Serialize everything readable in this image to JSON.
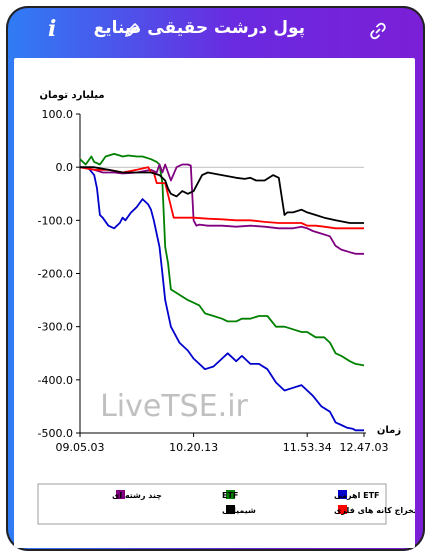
{
  "header": {
    "title": "پول درشت حقیقی صنایع",
    "info_icon": "i"
  },
  "watermark": "LiveTSE.ir",
  "chart_data": {
    "type": "line",
    "ylabel": "میلیارد تومان",
    "xlabel": "زمان",
    "ylim": [
      -500,
      100
    ],
    "yticks": [
      "100.0",
      "0.0",
      "-100.0",
      "-200.0",
      "-300.0",
      "-400.0",
      "-500.0"
    ],
    "xticks": [
      "09.05.03",
      "10.20.13",
      "11.53.34",
      "12.47.03"
    ],
    "grid": false,
    "legend_position": "bottom",
    "series": [
      {
        "name": "ETF اهرمی",
        "color": "#0000cc",
        "x": [
          0,
          3,
          5,
          6,
          7,
          8,
          10,
          12,
          14,
          15,
          16,
          18,
          19,
          20,
          22,
          24,
          25,
          26,
          28,
          29,
          30,
          32,
          35,
          38,
          40,
          42,
          44,
          47,
          50,
          52,
          55,
          57,
          60,
          63,
          66,
          69,
          72,
          75,
          78,
          82,
          85,
          88,
          90,
          92,
          94,
          96,
          97,
          99,
          100
        ],
        "y": [
          0,
          -2,
          -15,
          -40,
          -90,
          -95,
          -110,
          -115,
          -105,
          -95,
          -100,
          -85,
          -80,
          -75,
          -60,
          -70,
          -80,
          -100,
          -150,
          -200,
          -250,
          -300,
          -330,
          -345,
          -360,
          -370,
          -380,
          -375,
          -360,
          -350,
          -365,
          -355,
          -370,
          -370,
          -380,
          -405,
          -420,
          -415,
          -410,
          -430,
          -450,
          -460,
          -480,
          -485,
          -490,
          -492,
          -495,
          -495,
          -495
        ]
      },
      {
        "name": "ETF",
        "color": "#008000",
        "x": [
          0,
          2,
          4,
          5,
          7,
          9,
          12,
          14,
          15,
          17,
          20,
          22,
          25,
          27,
          28,
          29,
          30,
          31,
          32,
          35,
          38,
          40,
          42,
          44,
          47,
          50,
          52,
          55,
          57,
          60,
          63,
          66,
          69,
          72,
          75,
          78,
          80,
          83,
          86,
          88,
          90,
          92,
          95,
          97,
          99,
          100
        ],
        "y": [
          15,
          5,
          20,
          10,
          5,
          20,
          25,
          22,
          20,
          22,
          20,
          20,
          15,
          10,
          5,
          -30,
          -150,
          -180,
          -230,
          -240,
          -250,
          -255,
          -260,
          -275,
          -280,
          -285,
          -290,
          -290,
          -285,
          -285,
          -280,
          -280,
          -300,
          -300,
          -305,
          -310,
          -310,
          -320,
          -320,
          -330,
          -350,
          -355,
          -365,
          -370,
          -372,
          -373
        ]
      },
      {
        "name": "چند رشته ای",
        "color": "#800080",
        "x": [
          0,
          3,
          5,
          8,
          12,
          15,
          20,
          25,
          27,
          28,
          29,
          30,
          32,
          34,
          36,
          38,
          39,
          40,
          41,
          42,
          45,
          50,
          55,
          60,
          65,
          70,
          75,
          78,
          80,
          82,
          85,
          88,
          90,
          92,
          95,
          97,
          99,
          100
        ],
        "y": [
          0,
          -3,
          -5,
          -10,
          -10,
          -12,
          -10,
          -5,
          -10,
          5,
          -10,
          5,
          -25,
          0,
          5,
          5,
          3,
          -100,
          -110,
          -108,
          -110,
          -110,
          -112,
          -110,
          -112,
          -115,
          -115,
          -112,
          -115,
          -120,
          -125,
          -130,
          -148,
          -155,
          -160,
          -163,
          -163,
          -163
        ]
      },
      {
        "name": "استخراج کانه های فلزی",
        "color": "#ff0000",
        "x": [
          0,
          5,
          10,
          15,
          20,
          24,
          25,
          26,
          27,
          28,
          30,
          33,
          36,
          40,
          45,
          50,
          55,
          60,
          65,
          70,
          75,
          78,
          80,
          83,
          86,
          90,
          95,
          100
        ],
        "y": [
          0,
          -5,
          -5,
          -10,
          -5,
          0,
          -10,
          -10,
          -30,
          -30,
          -30,
          -95,
          -95,
          -95,
          -97,
          -98,
          -100,
          -100,
          -103,
          -105,
          -105,
          -105,
          -110,
          -110,
          -112,
          -115,
          -115,
          -115
        ]
      },
      {
        "name": "شیمیایی",
        "color": "#000000",
        "x": [
          0,
          5,
          10,
          15,
          20,
          25,
          28,
          30,
          31,
          32,
          34,
          36,
          38,
          40,
          43,
          45,
          50,
          55,
          58,
          60,
          62,
          65,
          68,
          70,
          72,
          73,
          75,
          78,
          80,
          83,
          86,
          90,
          95,
          100
        ],
        "y": [
          0,
          0,
          -5,
          -10,
          -10,
          -10,
          -15,
          -25,
          -40,
          -50,
          -55,
          -45,
          -50,
          -45,
          -15,
          -10,
          -15,
          -20,
          -22,
          -20,
          -25,
          -25,
          -15,
          -20,
          -90,
          -85,
          -85,
          -80,
          -85,
          -90,
          -95,
          -100,
          -105,
          -105
        ]
      }
    ]
  }
}
